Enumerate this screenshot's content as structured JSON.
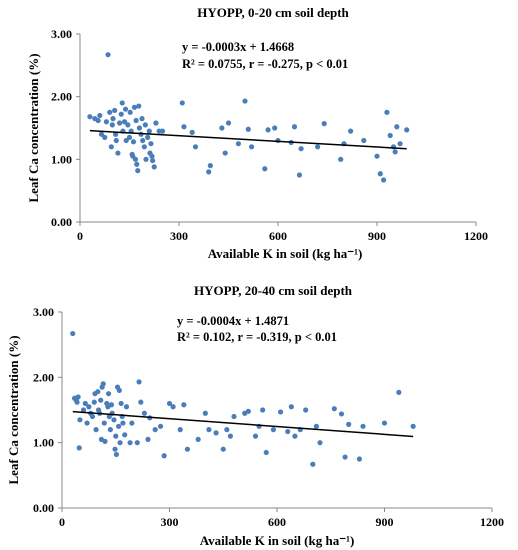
{
  "chart_data": [
    {
      "type": "scatter",
      "title": "HYOPP, 0-20 cm soil depth",
      "xlabel": "Available K in soil (kg ha⁻¹)",
      "ylabel": "Leaf Ca concentration (%)",
      "xlim": [
        0,
        1200
      ],
      "ylim": [
        0,
        3
      ],
      "xticks": [
        "0",
        "300",
        "600",
        "900",
        "1200"
      ],
      "yticks": [
        "0.00",
        "1.00",
        "2.00",
        "3.00"
      ],
      "equation": "y = -0.0003x + 1.4668",
      "stats": "R² = 0.0755, r = -0.275, p < 0.01",
      "trendline": {
        "slope": -0.0003,
        "intercept": 1.4668,
        "x_range": [
          30,
          990
        ]
      },
      "marker_color": "#4a7ebb",
      "trend_color": "#000000",
      "points": [
        [
          30,
          1.68
        ],
        [
          45,
          1.65
        ],
        [
          55,
          1.62
        ],
        [
          60,
          1.7
        ],
        [
          65,
          1.4
        ],
        [
          75,
          1.35
        ],
        [
          80,
          1.6
        ],
        [
          85,
          2.67
        ],
        [
          90,
          1.75
        ],
        [
          95,
          1.2
        ],
        [
          98,
          1.55
        ],
        [
          100,
          1.65
        ],
        [
          105,
          1.78
        ],
        [
          108,
          1.4
        ],
        [
          110,
          1.3
        ],
        [
          115,
          1.1
        ],
        [
          120,
          1.58
        ],
        [
          125,
          1.72
        ],
        [
          128,
          1.9
        ],
        [
          130,
          1.45
        ],
        [
          135,
          1.6
        ],
        [
          138,
          1.8
        ],
        [
          140,
          1.3
        ],
        [
          145,
          1.55
        ],
        [
          150,
          1.35
        ],
        [
          152,
          1.75
        ],
        [
          155,
          1.45
        ],
        [
          158,
          1.08
        ],
        [
          160,
          1.05
        ],
        [
          162,
          1.28
        ],
        [
          165,
          1.83
        ],
        [
          168,
          1.0
        ],
        [
          170,
          1.62
        ],
        [
          172,
          0.92
        ],
        [
          175,
          0.82
        ],
        [
          178,
          1.85
        ],
        [
          180,
          1.5
        ],
        [
          185,
          1.4
        ],
        [
          188,
          1.65
        ],
        [
          190,
          1.3
        ],
        [
          195,
          1.2
        ],
        [
          198,
          1.55
        ],
        [
          200,
          1.0
        ],
        [
          205,
          1.35
        ],
        [
          210,
          1.45
        ],
        [
          212,
          1.1
        ],
        [
          215,
          1.25
        ],
        [
          218,
          1.05
        ],
        [
          220,
          0.98
        ],
        [
          225,
          0.88
        ],
        [
          230,
          1.58
        ],
        [
          240,
          1.45
        ],
        [
          250,
          1.45
        ],
        [
          310,
          1.9
        ],
        [
          315,
          1.52
        ],
        [
          340,
          1.43
        ],
        [
          350,
          1.2
        ],
        [
          390,
          0.8
        ],
        [
          395,
          0.9
        ],
        [
          430,
          1.5
        ],
        [
          440,
          1.1
        ],
        [
          450,
          1.58
        ],
        [
          480,
          1.25
        ],
        [
          500,
          1.93
        ],
        [
          510,
          1.48
        ],
        [
          520,
          1.2
        ],
        [
          560,
          0.85
        ],
        [
          570,
          1.47
        ],
        [
          590,
          1.5
        ],
        [
          600,
          1.3
        ],
        [
          640,
          1.27
        ],
        [
          650,
          1.52
        ],
        [
          665,
          0.75
        ],
        [
          670,
          1.17
        ],
        [
          720,
          1.2
        ],
        [
          740,
          1.57
        ],
        [
          790,
          1.0
        ],
        [
          800,
          1.25
        ],
        [
          820,
          1.45
        ],
        [
          860,
          1.3
        ],
        [
          900,
          1.05
        ],
        [
          910,
          0.77
        ],
        [
          920,
          0.67
        ],
        [
          930,
          1.75
        ],
        [
          940,
          1.38
        ],
        [
          950,
          1.2
        ],
        [
          955,
          1.12
        ],
        [
          960,
          1.52
        ],
        [
          970,
          1.25
        ],
        [
          990,
          1.47
        ]
      ]
    },
    {
      "type": "scatter",
      "title": "HYOPP, 20-40 cm soil depth",
      "xlabel": "Available K in soil (kg ha⁻¹)",
      "ylabel": "Leaf Ca concentration (%)",
      "xlim": [
        0,
        1200
      ],
      "ylim": [
        0,
        3
      ],
      "xticks": [
        "0",
        "300",
        "600",
        "900",
        "1200"
      ],
      "yticks": [
        "0.00",
        "1.00",
        "2.00",
        "3.00"
      ],
      "equation": "y = -0.0004x + 1.4871",
      "stats": "R² = 0.102, r = -0.319, p < 0.01",
      "trendline": {
        "slope": -0.0004,
        "intercept": 1.4871,
        "x_range": [
          30,
          980
        ]
      },
      "marker_color": "#4a7ebb",
      "trend_color": "#000000",
      "points": [
        [
          30,
          2.67
        ],
        [
          35,
          1.68
        ],
        [
          40,
          1.65
        ],
        [
          42,
          1.62
        ],
        [
          45,
          1.7
        ],
        [
          48,
          0.92
        ],
        [
          50,
          1.35
        ],
        [
          60,
          1.5
        ],
        [
          65,
          1.6
        ],
        [
          70,
          1.3
        ],
        [
          75,
          1.55
        ],
        [
          80,
          1.45
        ],
        [
          85,
          1.4
        ],
        [
          90,
          1.62
        ],
        [
          92,
          1.75
        ],
        [
          95,
          1.2
        ],
        [
          100,
          1.78
        ],
        [
          102,
          1.5
        ],
        [
          105,
          1.45
        ],
        [
          108,
          1.65
        ],
        [
          110,
          1.05
        ],
        [
          112,
          1.85
        ],
        [
          115,
          1.9
        ],
        [
          118,
          1.3
        ],
        [
          120,
          1.02
        ],
        [
          125,
          1.6
        ],
        [
          128,
          1.55
        ],
        [
          130,
          1.75
        ],
        [
          132,
          1.4
        ],
        [
          135,
          1.2
        ],
        [
          138,
          1.58
        ],
        [
          140,
          1.45
        ],
        [
          145,
          1.35
        ],
        [
          148,
          0.9
        ],
        [
          150,
          1.1
        ],
        [
          152,
          0.82
        ],
        [
          155,
          1.85
        ],
        [
          158,
          1.25
        ],
        [
          160,
          1.8
        ],
        [
          162,
          1.0
        ],
        [
          165,
          1.6
        ],
        [
          168,
          1.4
        ],
        [
          170,
          1.3
        ],
        [
          175,
          1.12
        ],
        [
          180,
          1.55
        ],
        [
          190,
          1.0
        ],
        [
          195,
          1.3
        ],
        [
          210,
          1.0
        ],
        [
          215,
          1.93
        ],
        [
          220,
          1.62
        ],
        [
          230,
          1.45
        ],
        [
          240,
          1.05
        ],
        [
          245,
          1.38
        ],
        [
          260,
          1.2
        ],
        [
          275,
          1.25
        ],
        [
          285,
          0.8
        ],
        [
          300,
          1.6
        ],
        [
          310,
          1.55
        ],
        [
          330,
          1.2
        ],
        [
          340,
          1.58
        ],
        [
          350,
          0.9
        ],
        [
          380,
          1.05
        ],
        [
          400,
          1.45
        ],
        [
          410,
          1.2
        ],
        [
          430,
          1.15
        ],
        [
          450,
          0.9
        ],
        [
          460,
          1.2
        ],
        [
          470,
          1.1
        ],
        [
          480,
          1.4
        ],
        [
          510,
          1.45
        ],
        [
          520,
          1.48
        ],
        [
          540,
          1.1
        ],
        [
          550,
          1.25
        ],
        [
          560,
          1.5
        ],
        [
          570,
          0.85
        ],
        [
          590,
          1.2
        ],
        [
          610,
          1.47
        ],
        [
          630,
          1.17
        ],
        [
          640,
          1.55
        ],
        [
          650,
          1.1
        ],
        [
          665,
          1.2
        ],
        [
          680,
          1.5
        ],
        [
          700,
          0.67
        ],
        [
          710,
          1.25
        ],
        [
          720,
          1.0
        ],
        [
          760,
          1.52
        ],
        [
          780,
          1.44
        ],
        [
          790,
          0.78
        ],
        [
          800,
          1.28
        ],
        [
          830,
          0.75
        ],
        [
          840,
          1.25
        ],
        [
          900,
          1.3
        ],
        [
          940,
          1.77
        ],
        [
          980,
          1.25
        ]
      ]
    }
  ]
}
